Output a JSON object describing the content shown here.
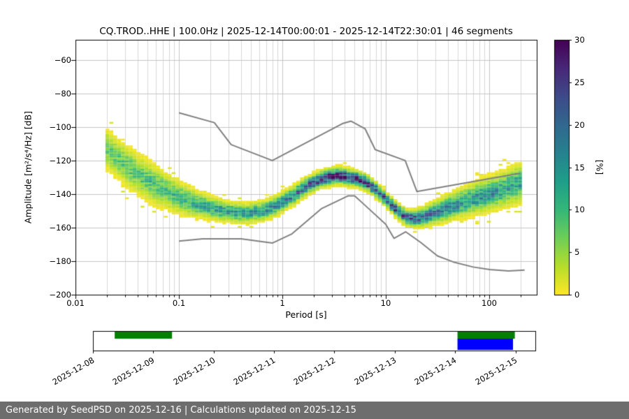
{
  "title": "CQ.TROD..HHE | 100.0Hz | 2025-12-14T00:00:01 - 2025-12-14T22:30:01 | 46 segments",
  "footer": "Generated by SeedPSD on 2025-12-16 | Calculations updated on 2025-12-15",
  "colors": {
    "footer_bg": "#6d6d6d",
    "footer_text": "#ffffff",
    "grid_major": "#c4c4c4",
    "grid_minor": "#d9d9d9",
    "frame": "#000000",
    "noise_model": "#808080",
    "coverage_green": "#008000",
    "selection_blue": "#0000ff"
  },
  "chart_data": {
    "type": "heatmap",
    "title": "CQ.TROD..HHE | 100.0Hz | 2025-12-14T00:00:01 - 2025-12-14T22:30:01 | 46 segments",
    "xlabel": "Period [s]",
    "ylabel": "Amplitude [m²/s⁴/Hz] [dB]",
    "x_scale": "log",
    "xlim": [
      0.01,
      288
    ],
    "ylim": [
      -200,
      -48
    ],
    "x_ticks": [
      0.01,
      0.1,
      1,
      10,
      100
    ],
    "x_tick_labels": [
      "0.01",
      "0.1",
      "1",
      "10",
      "100"
    ],
    "y_ticks": [
      -60,
      -80,
      -100,
      -120,
      -140,
      -160,
      -180,
      -200
    ],
    "grid": true,
    "colorbar": {
      "label": "[%]",
      "min": 0,
      "max": 30,
      "ticks": [
        0,
        5,
        10,
        15,
        20,
        25,
        30
      ],
      "colormap": "viridis_r",
      "viridis_stops": [
        "#440154",
        "#482878",
        "#3e4a89",
        "#31688e",
        "#26828e",
        "#1f9e89",
        "#35b779",
        "#6ece58",
        "#b5de2b",
        "#fde725"
      ]
    },
    "noise_models": {
      "high_noise_model": [
        [
          0.1,
          -91.5
        ],
        [
          0.22,
          -97.4
        ],
        [
          0.32,
          -110.5
        ],
        [
          0.8,
          -120.0
        ],
        [
          3.8,
          -98.0
        ],
        [
          4.6,
          -96.5
        ],
        [
          6.3,
          -101.0
        ],
        [
          7.9,
          -113.5
        ],
        [
          15.4,
          -120.0
        ],
        [
          20.0,
          -138.5
        ],
        [
          200.0,
          -127.5
        ]
      ],
      "low_noise_model": [
        [
          0.1,
          -168.0
        ],
        [
          0.17,
          -166.7
        ],
        [
          0.4,
          -166.7
        ],
        [
          0.8,
          -169.2
        ],
        [
          1.24,
          -163.7
        ],
        [
          2.4,
          -148.6
        ],
        [
          4.3,
          -141.1
        ],
        [
          5.0,
          -141.1
        ],
        [
          6.0,
          -145.5
        ],
        [
          10.0,
          -158.0
        ],
        [
          12.0,
          -166.4
        ],
        [
          15.6,
          -162.5
        ],
        [
          21.9,
          -169.0
        ],
        [
          31.6,
          -176.9
        ],
        [
          45.0,
          -180.5
        ],
        [
          70.0,
          -183.5
        ],
        [
          101.0,
          -185.0
        ],
        [
          154.0,
          -185.8
        ],
        [
          220.0,
          -185.3
        ]
      ]
    },
    "psd_band": {
      "points": [
        [
          0.02,
          -113,
          5.5,
          8
        ],
        [
          0.026,
          -119,
          5.5,
          8
        ],
        [
          0.034,
          -125,
          5.5,
          9
        ],
        [
          0.045,
          -130,
          5.5,
          9
        ],
        [
          0.06,
          -135,
          5.2,
          10
        ],
        [
          0.08,
          -139,
          4.8,
          10
        ],
        [
          0.11,
          -143,
          4.2,
          11
        ],
        [
          0.15,
          -146,
          3.6,
          12
        ],
        [
          0.21,
          -148.5,
          3.1,
          13
        ],
        [
          0.3,
          -150.5,
          2.8,
          14
        ],
        [
          0.45,
          -151.5,
          2.7,
          15
        ],
        [
          0.65,
          -150,
          2.7,
          15
        ],
        [
          0.9,
          -146.5,
          2.7,
          16
        ],
        [
          1.3,
          -140.5,
          2.6,
          18
        ],
        [
          1.8,
          -134.5,
          2.4,
          22
        ],
        [
          2.5,
          -130.5,
          2.3,
          27
        ],
        [
          3.5,
          -129,
          2.3,
          29
        ],
        [
          5.0,
          -130.5,
          2.2,
          29
        ],
        [
          6.5,
          -133,
          2.1,
          27
        ],
        [
          8.0,
          -137.5,
          2.1,
          25
        ],
        [
          10,
          -143,
          2.0,
          25
        ],
        [
          13,
          -150,
          2.0,
          26
        ],
        [
          16,
          -154,
          2.1,
          25
        ],
        [
          20,
          -154.5,
          2.4,
          22
        ],
        [
          26,
          -152.5,
          2.9,
          19
        ],
        [
          35,
          -149.5,
          3.4,
          17
        ],
        [
          50,
          -146,
          3.9,
          16
        ],
        [
          70,
          -143,
          4.3,
          15
        ],
        [
          100,
          -140,
          4.6,
          15
        ],
        [
          140,
          -137,
          4.9,
          14
        ],
        [
          200,
          -133.5,
          5.2,
          14
        ]
      ]
    },
    "timeline": {
      "tick_labels": [
        "2025-12-08",
        "2025-12-09",
        "2025-12-10",
        "2025-12-11",
        "2025-12-12",
        "2025-12-13",
        "2025-12-14",
        "2025-12-15"
      ],
      "span_days": 7.33,
      "bars": [
        {
          "name": "coverage-bar-early",
          "color": "#008000",
          "from_day": 0.36,
          "to_day": 1.31,
          "row": "top"
        },
        {
          "name": "coverage-bar-recent",
          "color": "#008000",
          "from_day": 6.04,
          "to_day": 6.99,
          "row": "top"
        },
        {
          "name": "selected-range-bar",
          "color": "#0000ff",
          "from_day": 6.04,
          "to_day": 6.96,
          "row": "bottom"
        }
      ]
    }
  }
}
